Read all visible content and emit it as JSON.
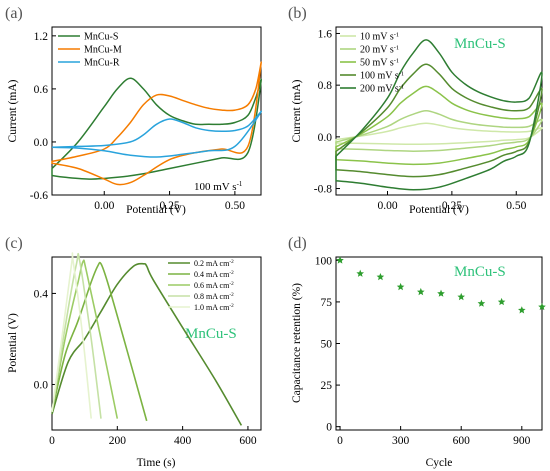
{
  "chart_data": [
    {
      "panel": "(a)",
      "type": "line",
      "xlabel": "Potential (V)",
      "ylabel": "Current (mA)",
      "xlim": [
        -0.2,
        0.6
      ],
      "ylim": [
        -0.6,
        1.3
      ],
      "xticks": [
        0.0,
        0.25,
        0.5
      ],
      "xtick_labels": [
        "0.00",
        "0.25",
        "0.50"
      ],
      "yticks": [
        -0.6,
        0.0,
        0.6,
        1.2
      ],
      "ytick_labels": [
        "-0.6",
        "0.0",
        "0.6",
        "1.2"
      ],
      "annotation": "100 mV s",
      "annotation_sup": "-1",
      "legend_position": "top-left",
      "series": [
        {
          "name": "MnCu-S",
          "color": "#2e7d32",
          "x": [
            -0.2,
            -0.1,
            0.0,
            0.05,
            0.1,
            0.15,
            0.2,
            0.25,
            0.3,
            0.35,
            0.4,
            0.45,
            0.5,
            0.55,
            0.58,
            0.6,
            0.55,
            0.45,
            0.35,
            0.25,
            0.15,
            0.05,
            -0.05,
            -0.15,
            -0.2
          ],
          "y": [
            -0.3,
            0.0,
            0.4,
            0.6,
            0.72,
            0.6,
            0.42,
            0.3,
            0.24,
            0.2,
            0.2,
            0.2,
            0.22,
            0.3,
            0.5,
            0.68,
            -0.12,
            -0.18,
            -0.24,
            -0.3,
            -0.36,
            -0.4,
            -0.42,
            -0.4,
            -0.38
          ]
        },
        {
          "name": "MnCu-M",
          "color": "#f57c00",
          "x": [
            -0.2,
            -0.1,
            0.0,
            0.05,
            0.1,
            0.15,
            0.2,
            0.25,
            0.3,
            0.35,
            0.4,
            0.45,
            0.5,
            0.55,
            0.58,
            0.6,
            0.55,
            0.45,
            0.35,
            0.25,
            0.15,
            0.1,
            0.05,
            0.0,
            -0.1,
            -0.2
          ],
          "y": [
            -0.22,
            -0.16,
            -0.08,
            0.05,
            0.22,
            0.42,
            0.53,
            0.52,
            0.47,
            0.42,
            0.38,
            0.36,
            0.36,
            0.42,
            0.6,
            0.88,
            -0.05,
            -0.08,
            -0.12,
            -0.2,
            -0.38,
            -0.46,
            -0.48,
            -0.42,
            -0.3,
            -0.24
          ]
        },
        {
          "name": "MnCu-R",
          "color": "#29a3dc",
          "x": [
            -0.2,
            -0.1,
            0.0,
            0.1,
            0.15,
            0.2,
            0.25,
            0.3,
            0.35,
            0.4,
            0.45,
            0.5,
            0.55,
            0.6,
            0.5,
            0.4,
            0.3,
            0.2,
            0.1,
            0.0,
            -0.1,
            -0.2
          ],
          "y": [
            -0.06,
            -0.05,
            -0.04,
            0.0,
            0.08,
            0.2,
            0.26,
            0.22,
            0.16,
            0.13,
            0.12,
            0.13,
            0.18,
            0.34,
            -0.05,
            -0.1,
            -0.14,
            -0.17,
            -0.15,
            -0.1,
            -0.07,
            -0.06
          ]
        }
      ]
    },
    {
      "panel": "(b)",
      "type": "line",
      "title": "MnCu-S",
      "xlabel": "Potential (V)",
      "ylabel": "Current (mA)",
      "xlim": [
        -0.2,
        0.6
      ],
      "ylim": [
        -0.9,
        1.7
      ],
      "xticks": [
        0.0,
        0.25,
        0.5
      ],
      "xtick_labels": [
        "0.00",
        "0.25",
        "0.50"
      ],
      "yticks": [
        -0.8,
        0.0,
        0.8,
        1.6
      ],
      "ytick_labels": [
        "-0.8",
        "0.0",
        "0.8",
        "1.6"
      ],
      "legend_position": "top-left",
      "legend_unit_sup": "-1",
      "series": [
        {
          "name": "10 mV s",
          "scale": 0.14,
          "color": "#cfe8a9"
        },
        {
          "name": "20 mV s",
          "scale": 0.27,
          "color": "#aed581"
        },
        {
          "name": "50 mV s",
          "scale": 0.52,
          "color": "#8bc34a"
        },
        {
          "name": "100 mV s",
          "scale": 0.75,
          "color": "#558b2f"
        },
        {
          "name": "200 mV s",
          "scale": 1.0,
          "color": "#2e7d32"
        }
      ],
      "base_curve": {
        "x": [
          -0.2,
          -0.1,
          0.0,
          0.05,
          0.1,
          0.15,
          0.2,
          0.25,
          0.3,
          0.35,
          0.4,
          0.45,
          0.5,
          0.55,
          0.6,
          0.55,
          0.5,
          0.45,
          0.4,
          0.3,
          0.2,
          0.1,
          0.0,
          -0.1,
          -0.2
        ],
        "y": [
          -0.3,
          0.1,
          0.6,
          1.0,
          1.3,
          1.5,
          1.3,
          1.0,
          0.82,
          0.7,
          0.62,
          0.56,
          0.54,
          0.6,
          0.98,
          -0.1,
          -0.3,
          -0.38,
          -0.5,
          -0.65,
          -0.78,
          -0.82,
          -0.78,
          -0.72,
          -0.68
        ]
      }
    },
    {
      "panel": "(c)",
      "type": "line",
      "title": "MnCu-S",
      "xlabel": "Time (s)",
      "ylabel": "Potential (V)",
      "xlim": [
        0,
        640
      ],
      "ylim": [
        -0.2,
        0.56
      ],
      "xticks": [
        0,
        200,
        400,
        600
      ],
      "xtick_labels": [
        "0",
        "200",
        "400",
        "600"
      ],
      "yticks": [
        0.0,
        0.4
      ],
      "ytick_labels": [
        "0.0",
        "0.4"
      ],
      "legend_position": "top-right",
      "legend_unit_sup": "-2",
      "series": [
        {
          "name": "0.2 mA cm",
          "color": "#558b2f",
          "x": [
            0,
            50,
            100,
            150,
            200,
            250,
            280,
            290,
            310,
            400,
            500,
            580
          ],
          "y": [
            -0.13,
            0.1,
            0.2,
            0.32,
            0.44,
            0.52,
            0.53,
            0.52,
            0.46,
            0.25,
            0.02,
            -0.18
          ]
        },
        {
          "name": "0.4 mA cm",
          "color": "#7cb342",
          "x": [
            0,
            40,
            80,
            120,
            140,
            150,
            170,
            220,
            290
          ],
          "y": [
            -0.12,
            0.13,
            0.28,
            0.45,
            0.52,
            0.53,
            0.45,
            0.2,
            -0.16
          ]
        },
        {
          "name": "0.6 mA cm",
          "color": "#9ccc65",
          "x": [
            0,
            40,
            80,
            95,
            105,
            150,
            200
          ],
          "y": [
            -0.12,
            0.2,
            0.45,
            0.54,
            0.5,
            0.2,
            -0.15
          ]
        },
        {
          "name": "0.8 mA cm",
          "color": "#c5e1a5",
          "x": [
            0,
            40,
            75,
            85,
            120,
            150
          ],
          "y": [
            -0.12,
            0.25,
            0.53,
            0.54,
            0.2,
            -0.15
          ]
        },
        {
          "name": "1.0 mA cm",
          "color": "#e6f3cf",
          "x": [
            0,
            30,
            60,
            65,
            95,
            120
          ],
          "y": [
            -0.12,
            0.2,
            0.53,
            0.54,
            0.2,
            -0.15
          ]
        }
      ]
    },
    {
      "panel": "(d)",
      "type": "scatter",
      "title": "MnCu-S",
      "xlabel": "Cycle",
      "ylabel": "Capacitance retention (%)",
      "xlim": [
        -20,
        1000
      ],
      "ylim": [
        -2,
        102
      ],
      "xticks": [
        0,
        300,
        600,
        900
      ],
      "xtick_labels": [
        "0",
        "300",
        "600",
        "900"
      ],
      "yticks": [
        0,
        25,
        50,
        75,
        100
      ],
      "ytick_labels": [
        "0",
        "25",
        "50",
        "75",
        "100"
      ],
      "marker_color": "#2e9e2e",
      "x": [
        0,
        100,
        200,
        300,
        400,
        500,
        600,
        700,
        800,
        900,
        1000
      ],
      "y": [
        100,
        92,
        90,
        84,
        81,
        80,
        78,
        74,
        75,
        70,
        72
      ]
    }
  ]
}
